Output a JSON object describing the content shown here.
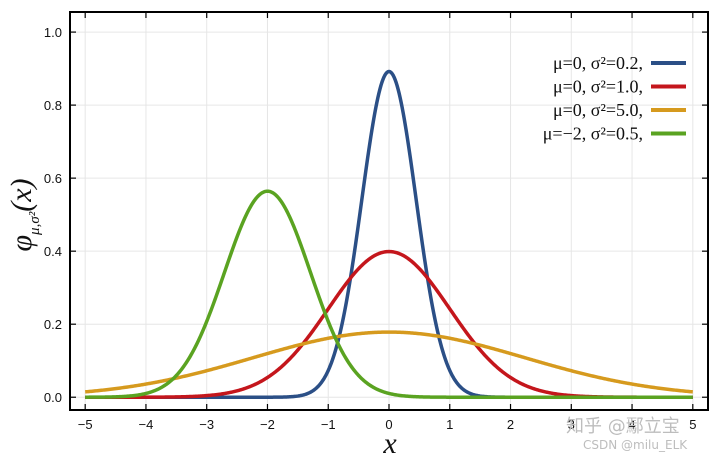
{
  "chart_data": {
    "type": "line",
    "xlabel": "x",
    "ylabel": "φμ,σ²(x)",
    "ylabel_parts": {
      "phi": "φ",
      "sub": "μ,σ²",
      "arg": "(x)"
    },
    "xlim": [
      -5.25,
      5.25
    ],
    "ylim": [
      -0.035,
      1.055
    ],
    "x_ticks": [
      -5,
      -4,
      -3,
      -2,
      -1,
      0,
      1,
      2,
      3,
      4,
      5
    ],
    "x_tick_labels": [
      "−5",
      "−4",
      "−3",
      "−2",
      "−1",
      "0",
      "1",
      "2",
      "3",
      "4",
      "5"
    ],
    "y_ticks": [
      0.0,
      0.2,
      0.4,
      0.6,
      0.8,
      1.0
    ],
    "y_tick_labels": [
      "0.0",
      "0.2",
      "0.4",
      "0.6",
      "0.8",
      "1.0"
    ],
    "grid": true,
    "legend_position": "top-right",
    "series": [
      {
        "name": "μ=0,   σ²=0.2,",
        "mu": 0,
        "variance": 0.2,
        "color": "#2b4f86",
        "x": [
          -5,
          -4,
          -3,
          -2,
          -1.5,
          -1,
          -0.8,
          -0.6,
          -0.4,
          -0.2,
          0,
          0.2,
          0.4,
          0.6,
          0.8,
          1,
          1.5,
          2,
          3,
          4,
          5
        ],
        "y": [
          0.0,
          0.0,
          0.0,
          0.0,
          0.0034,
          0.0732,
          0.1799,
          0.3612,
          0.664,
          0.8554,
          0.8921,
          0.8554,
          0.664,
          0.3612,
          0.1799,
          0.0732,
          0.0034,
          0.0,
          0.0,
          0.0,
          0.0
        ]
      },
      {
        "name": "μ=0,   σ²=1.0,",
        "mu": 0,
        "variance": 1.0,
        "color": "#c4161c",
        "x": [
          -5,
          -4,
          -3,
          -2.5,
          -2,
          -1.5,
          -1,
          -0.5,
          0,
          0.5,
          1,
          1.5,
          2,
          2.5,
          3,
          4,
          5
        ],
        "y": [
          0.0,
          0.0001,
          0.0044,
          0.0175,
          0.054,
          0.1295,
          0.242,
          0.3521,
          0.3989,
          0.3521,
          0.242,
          0.1295,
          0.054,
          0.0175,
          0.0044,
          0.0001,
          0.0
        ]
      },
      {
        "name": "μ=0,   σ²=5.0,",
        "mu": 0,
        "variance": 5.0,
        "color": "#d69a1e",
        "x": [
          -5,
          -4,
          -3,
          -2,
          -1,
          0,
          1,
          2,
          3,
          4,
          5
        ],
        "y": [
          0.0146,
          0.0361,
          0.0732,
          0.1195,
          0.1614,
          0.1784,
          0.1614,
          0.1195,
          0.0732,
          0.0361,
          0.0146
        ]
      },
      {
        "name": "μ=−2,  σ²=0.5,",
        "mu": -2,
        "variance": 0.5,
        "color": "#5aa321",
        "x": [
          -5,
          -4.5,
          -4,
          -3.5,
          -3,
          -2.5,
          -2,
          -1.5,
          -1,
          -0.5,
          0,
          0.5,
          1,
          2,
          3,
          4,
          5
        ],
        "y": [
          0.0,
          0.0011,
          0.0103,
          0.0602,
          0.2076,
          0.4394,
          0.5642,
          0.4394,
          0.2076,
          0.0602,
          0.0103,
          0.0011,
          0.0,
          0.0,
          0.0,
          0.0,
          0.0
        ]
      }
    ]
  },
  "watermark": {
    "main": "知乎 @鄢立宝",
    "sub": "CSDN @milu_ELK"
  }
}
